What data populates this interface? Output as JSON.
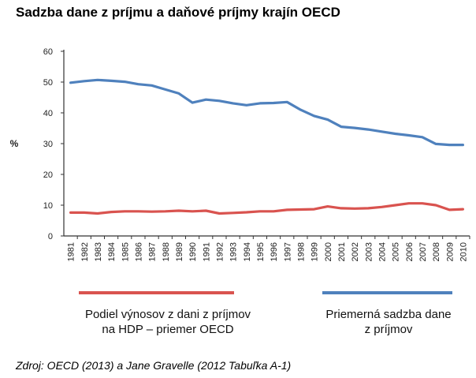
{
  "title": "Sadzba dane z príjmu a daňové príjmy krajín OECD",
  "source": "Zdroj: OECD (2013) a Jane Gravelle (2012 Tabuľka A-1)",
  "colors": {
    "series1": "#d9534f",
    "series2": "#4f81bd"
  },
  "legend": {
    "series1_line1": "Podiel výnosov z dani z príjmov",
    "series1_line2": "na HDP – priemer OECD",
    "series2_line1": "Priemerná sadzba dane",
    "series2_line2": "z príjmov"
  },
  "chart_data": {
    "type": "line",
    "ylabel": "%",
    "xlabel": "",
    "ylim": [
      0,
      60
    ],
    "yticks": [
      0,
      10,
      20,
      30,
      40,
      50,
      60
    ],
    "x": [
      "1981",
      "1982",
      "1983",
      "1984",
      "1985",
      "1986",
      "1987",
      "1988",
      "1989",
      "1990",
      "1991",
      "1992",
      "1993",
      "1994",
      "1995",
      "1996",
      "1997",
      "1998",
      "1999",
      "2000",
      "2001",
      "2002",
      "2003",
      "2004",
      "2005",
      "2006",
      "2007",
      "2008",
      "2009",
      "2010"
    ],
    "grid": false,
    "series": [
      {
        "name": "Podiel výnosov z dani z príjmov na HDP – priemer OECD",
        "color": "#d9534f",
        "values": [
          7.6,
          7.6,
          7.3,
          7.8,
          8.0,
          8.0,
          7.9,
          8.0,
          8.2,
          8.0,
          8.2,
          7.3,
          7.5,
          7.7,
          8.0,
          8.0,
          8.5,
          8.6,
          8.7,
          9.6,
          9.0,
          8.9,
          9.0,
          9.4,
          10.0,
          10.6,
          10.6,
          10.0,
          8.5,
          8.7
        ]
      },
      {
        "name": "Priemerná sadzba dane z príjmov",
        "color": "#4f81bd",
        "values": [
          49.8,
          50.3,
          50.7,
          50.4,
          50.1,
          49.3,
          48.9,
          47.6,
          46.3,
          43.3,
          44.3,
          43.9,
          43.1,
          42.5,
          43.1,
          43.2,
          43.5,
          41.0,
          39.0,
          37.8,
          35.5,
          35.1,
          34.6,
          33.9,
          33.2,
          32.7,
          32.1,
          29.9,
          29.6,
          29.6
        ]
      }
    ]
  }
}
